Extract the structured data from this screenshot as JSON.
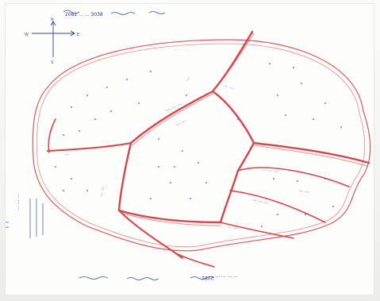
{
  "document": {
    "header_note": "2081 ... ... 3038",
    "compass": {
      "north_label": "N",
      "east_label": "E",
      "west_label": "W",
      "south_label": "S"
    },
    "labels": [
      "...",
      "... ...",
      "... ... ...",
      "... ...",
      "...",
      "... ... ...",
      "... ... ...",
      "... ...",
      "... ... ...",
      "... ... ...",
      "... ...",
      "... ..."
    ],
    "side_note": "... ... ...",
    "footer_note": "... ... ... ... 2081"
  },
  "map_colors": {
    "boundary": "#e05a5a",
    "roads": "#d8454a",
    "ink": "#3a4fb0",
    "dots": "#4a5bb8"
  }
}
